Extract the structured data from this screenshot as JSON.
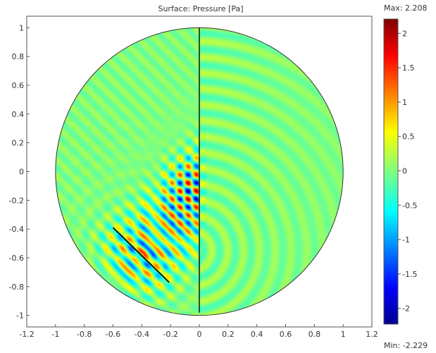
{
  "plot": {
    "title": "Surface: Pressure [Pa]",
    "x_ticks": [
      "-1.2",
      "-1",
      "-0.8",
      "-0.6",
      "-0.4",
      "-0.2",
      "0",
      "0.2",
      "0.4",
      "0.6",
      "0.8",
      "1",
      "1.2"
    ],
    "x_tick_values": [
      -1.2,
      -1,
      -0.8,
      -0.6,
      -0.4,
      -0.2,
      0,
      0.2,
      0.4,
      0.6,
      0.8,
      1,
      1.2
    ],
    "y_ticks": [
      "1",
      "0.8",
      "0.6",
      "0.4",
      "0.2",
      "0",
      "-0.2",
      "-0.4",
      "-0.6",
      "-0.8",
      "-1"
    ],
    "y_tick_values": [
      1,
      0.8,
      0.6,
      0.4,
      0.2,
      0,
      -0.2,
      -0.4,
      -0.6,
      -0.8,
      -1
    ],
    "xlim": [
      -1.2,
      1.2
    ],
    "ylim": [
      -1.08,
      1.08
    ],
    "domain_radius": 1,
    "divider_line": {
      "x": 0,
      "y_from": -0.98,
      "y_to": 1
    },
    "source_line": {
      "x1": -0.6,
      "y1": -0.39,
      "x2": -0.21,
      "y2": -0.77
    }
  },
  "colorbar": {
    "max_label": "Max: 2.208",
    "min_label": "Min: -2.229",
    "max_value": 2.208,
    "min_value": -2.229,
    "tick_labels": [
      "2",
      "1.5",
      "1",
      "0.5",
      "0",
      "-0.5",
      "-1",
      "-1.5",
      "-2"
    ],
    "tick_values": [
      2,
      1.5,
      1,
      0.5,
      0,
      -0.5,
      -1,
      -1.5,
      -2
    ],
    "colormap": [
      "#00008f",
      "#0000ff",
      "#00ffff",
      "#7fff7f",
      "#ffff00",
      "#ff0000",
      "#800000"
    ]
  }
}
